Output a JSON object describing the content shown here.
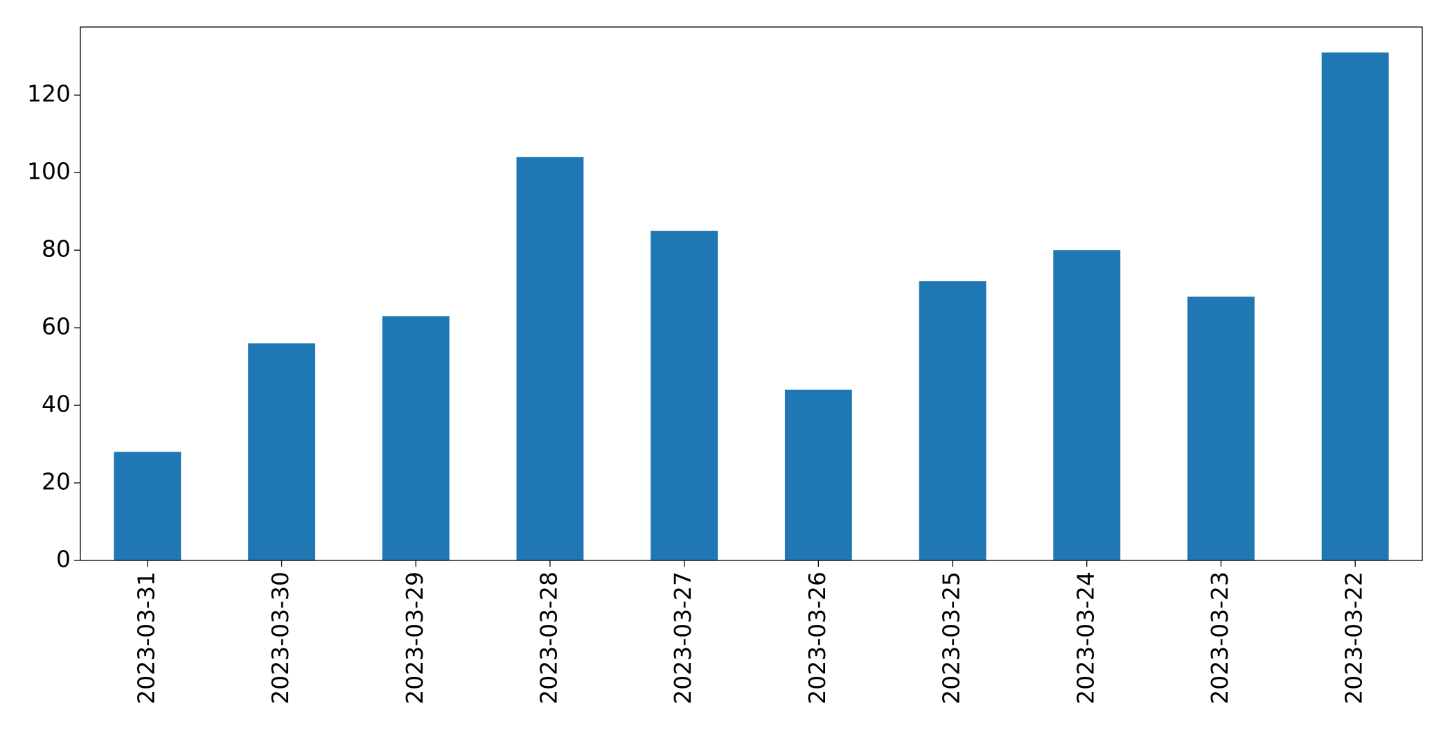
{
  "chart_data": {
    "type": "bar",
    "categories": [
      "2023-03-31",
      "2023-03-30",
      "2023-03-29",
      "2023-03-28",
      "2023-03-27",
      "2023-03-26",
      "2023-03-25",
      "2023-03-24",
      "2023-03-23",
      "2023-03-22"
    ],
    "values": [
      28,
      56,
      63,
      104,
      85,
      44,
      72,
      80,
      68,
      131
    ],
    "color": "#1f77b4",
    "ylim": [
      0,
      137.55
    ],
    "yticks": [
      0,
      20,
      40,
      60,
      80,
      100,
      120
    ],
    "grid": false
  }
}
